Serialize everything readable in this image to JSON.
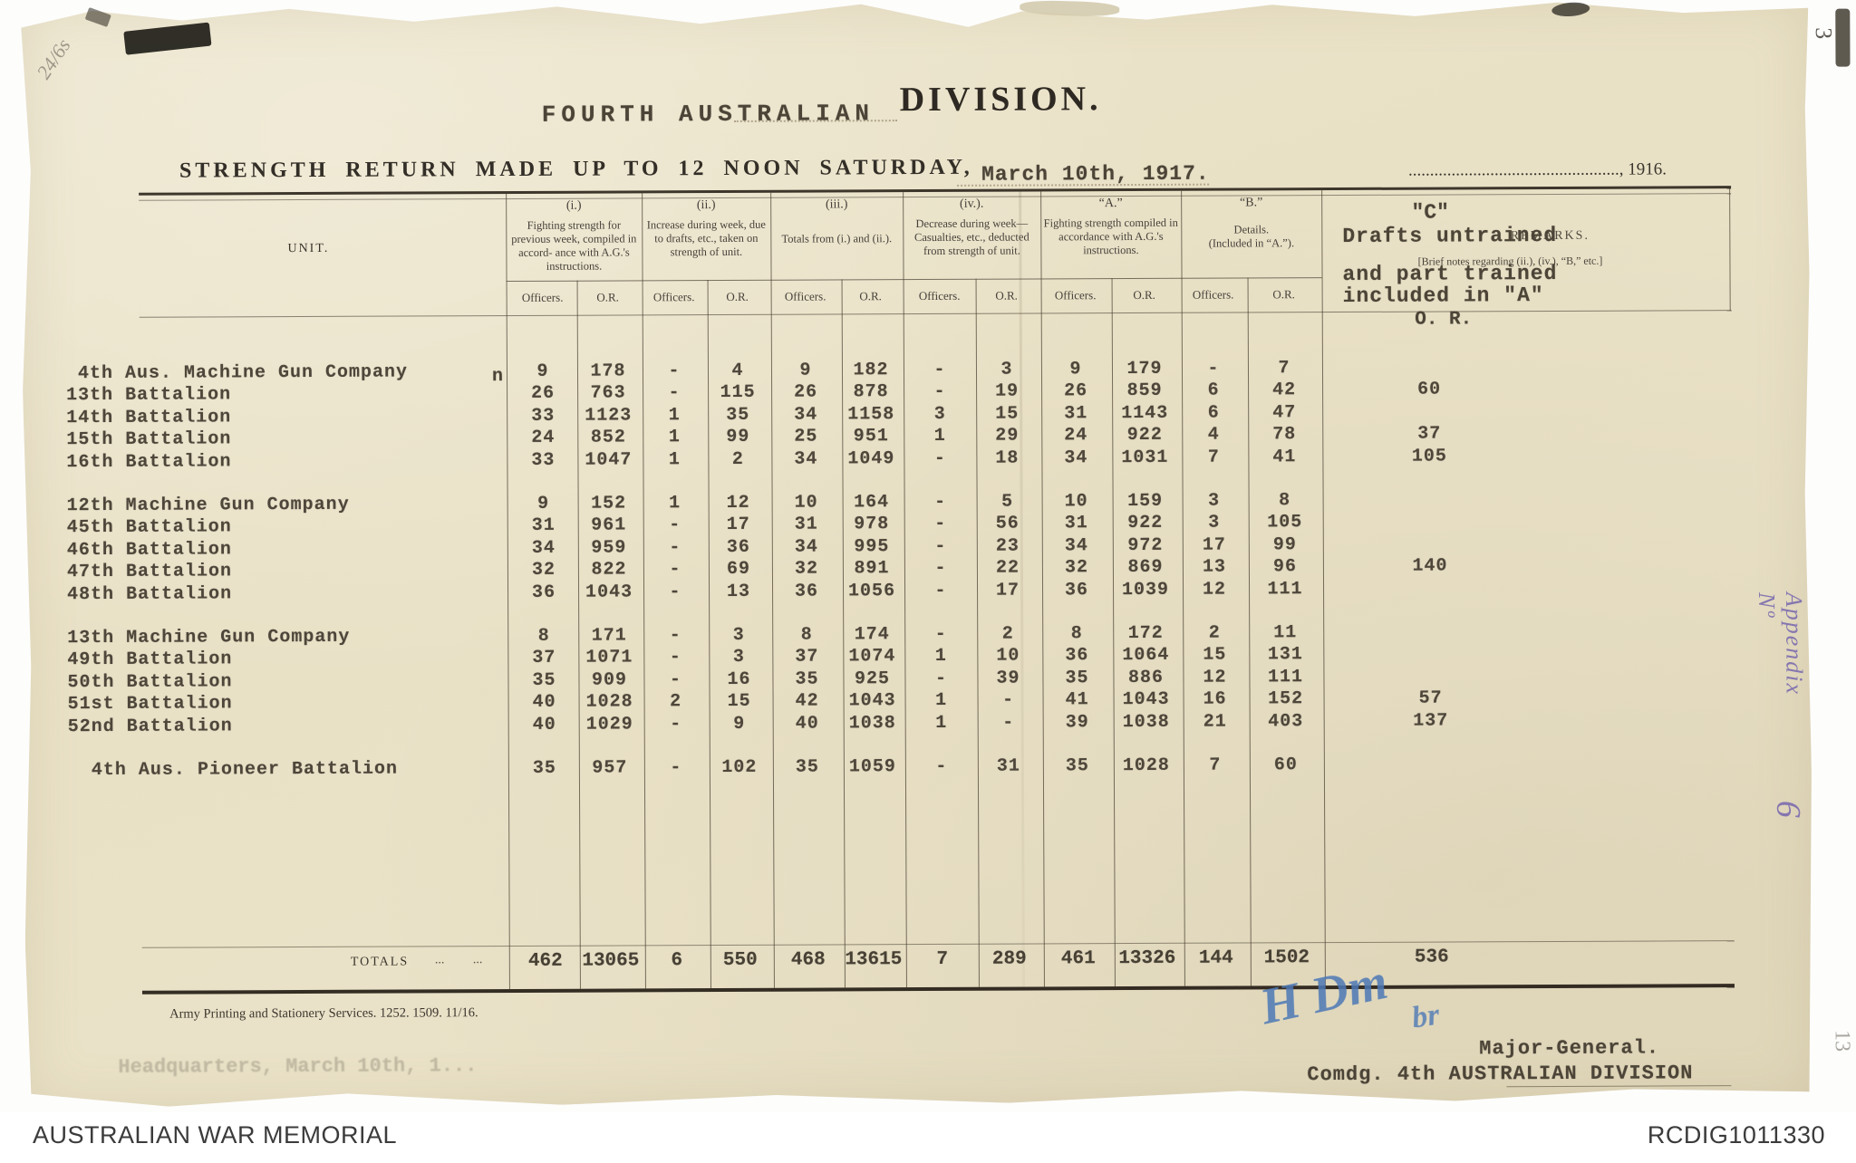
{
  "title": {
    "typed_prefix": "FOURTH   AUSTRALIAN",
    "printed_name": "DIVISION.",
    "strength_line": "STRENGTH  RETURN  MADE  UP  TO  12  NOON  SATURDAY,",
    "typed_date": "March 10th,  1917.",
    "printed_year_line": "................................................., 1916."
  },
  "corner_marks": {
    "pencil_note": "24/6s",
    "top_right_mark": "3",
    "right_edge_mark": "13"
  },
  "margin_notes": {
    "appendix_label": "Appendix Nº",
    "appendix_number": "6"
  },
  "table": {
    "unit_label": "UNIT.",
    "officers_label": "Officers.",
    "or_label": "O.R.",
    "stray_mark": "n",
    "groups": [
      {
        "tag": "(i.)",
        "desc": "Fighting strength for previous week, compiled in accord- ance with A.G.'s instructions."
      },
      {
        "tag": "(ii.)",
        "desc": "Increase during week, due to drafts, etc., taken on strength of unit."
      },
      {
        "tag": "(iii.)",
        "desc": "Totals from (i.) and (ii.)."
      },
      {
        "tag": "(iv.).",
        "desc": "Decrease during week—Casualties, etc., deducted from strength of unit."
      },
      {
        "tag": "“A.”",
        "desc": "Fighting strength compiled in accordance with A.G.'s instructions."
      },
      {
        "tag": "“B.”",
        "desc": "Details.\n(Included in “A.”)."
      }
    ],
    "remarks_header": {
      "printed_title": "REMARKS.",
      "printed_note": "[Brief notes regarding (ii.), (iv.), “B,” etc.]",
      "typed_c": "\"C\"",
      "typed_line1": "Drafts untrained",
      "typed_line2": "and part trained",
      "typed_line3": "included in \"A\"",
      "typed_line4": "O. R."
    },
    "row_groups": [
      {
        "rows": [
          {
            "unit": " 4th Aus. Machine Gun Company",
            "values": [
              "9",
              "178",
              "-",
              "4",
              "9",
              "182",
              "-",
              "3",
              "9",
              "179",
              "-",
              "7"
            ],
            "remark": ""
          },
          {
            "unit": "13th Battalion",
            "values": [
              "26",
              "763",
              "-",
              "115",
              "26",
              "878",
              "-",
              "19",
              "26",
              "859",
              "6",
              "42"
            ],
            "remark": "60"
          },
          {
            "unit": "14th Battalion",
            "values": [
              "33",
              "1123",
              "1",
              "35",
              "34",
              "1158",
              "3",
              "15",
              "31",
              "1143",
              "6",
              "47"
            ],
            "remark": ""
          },
          {
            "unit": "15th Battalion",
            "values": [
              "24",
              "852",
              "1",
              "99",
              "25",
              "951",
              "1",
              "29",
              "24",
              "922",
              "4",
              "78"
            ],
            "remark": "37"
          },
          {
            "unit": "16th Battalion",
            "values": [
              "33",
              "1047",
              "1",
              "2",
              "34",
              "1049",
              "-",
              "18",
              "34",
              "1031",
              "7",
              "41"
            ],
            "remark": "105"
          }
        ]
      },
      {
        "rows": [
          {
            "unit": "12th Machine Gun Company",
            "values": [
              "9",
              "152",
              "1",
              "12",
              "10",
              "164",
              "-",
              "5",
              "10",
              "159",
              "3",
              "8"
            ],
            "remark": ""
          },
          {
            "unit": "45th Battalion",
            "values": [
              "31",
              "961",
              "-",
              "17",
              "31",
              "978",
              "-",
              "56",
              "31",
              "922",
              "3",
              "105"
            ],
            "remark": ""
          },
          {
            "unit": "46th Battalion",
            "values": [
              "34",
              "959",
              "-",
              "36",
              "34",
              "995",
              "-",
              "23",
              "34",
              "972",
              "17",
              "99"
            ],
            "remark": ""
          },
          {
            "unit": "47th Battalion",
            "values": [
              "32",
              "822",
              "-",
              "69",
              "32",
              "891",
              "-",
              "22",
              "32",
              "869",
              "13",
              "96"
            ],
            "remark": "140"
          },
          {
            "unit": "48th Battalion",
            "values": [
              "36",
              "1043",
              "-",
              "13",
              "36",
              "1056",
              "-",
              "17",
              "36",
              "1039",
              "12",
              "111"
            ],
            "remark": ""
          }
        ]
      },
      {
        "rows": [
          {
            "unit": "13th Machine Gun Company",
            "values": [
              "8",
              "171",
              "-",
              "3",
              "8",
              "174",
              "-",
              "2",
              "8",
              "172",
              "2",
              "11"
            ],
            "remark": ""
          },
          {
            "unit": "49th Battalion",
            "values": [
              "37",
              "1071",
              "-",
              "3",
              "37",
              "1074",
              "1",
              "10",
              "36",
              "1064",
              "15",
              "131"
            ],
            "remark": ""
          },
          {
            "unit": "50th Battalion",
            "values": [
              "35",
              "909",
              "-",
              "16",
              "35",
              "925",
              "-",
              "39",
              "35",
              "886",
              "12",
              "111"
            ],
            "remark": ""
          },
          {
            "unit": "51st Battalion",
            "values": [
              "40",
              "1028",
              "2",
              "15",
              "42",
              "1043",
              "1",
              "-",
              "41",
              "1043",
              "16",
              "152"
            ],
            "remark": "57"
          },
          {
            "unit": "52nd Battalion",
            "values": [
              "40",
              "1029",
              "-",
              "9",
              "40",
              "1038",
              "1",
              "-",
              "39",
              "1038",
              "21",
              "403"
            ],
            "remark": "137"
          }
        ]
      },
      {
        "rows": [
          {
            "unit": "  4th Aus. Pioneer Battalion",
            "values": [
              "35",
              "957",
              "-",
              "102",
              "35",
              "1059",
              "-",
              "31",
              "35",
              "1028",
              "7",
              "60"
            ],
            "remark": ""
          }
        ]
      }
    ],
    "totals": {
      "label": "TOTALS",
      "leader_dots": "...         ...",
      "values": [
        "462",
        "13065",
        "6",
        "550",
        "468",
        "13615",
        "7",
        "289",
        "461",
        "13326",
        "144",
        "1502"
      ],
      "remark": "536"
    }
  },
  "footer": {
    "print_line": "Army Printing and Stationery Services.   1252.   1509.   11/16.",
    "faded_line": "Headquarters,   March 10th, 1...",
    "signature_main": "H Dm",
    "signature_small": "br",
    "major_general": "Major-General.",
    "commanding_line": "Comdg. 4th AUSTRALIAN DIVISION"
  },
  "awm_bar": {
    "left_text": "AUSTRALIAN WAR MEMORIAL",
    "right_text": "RCDIG1011330"
  }
}
